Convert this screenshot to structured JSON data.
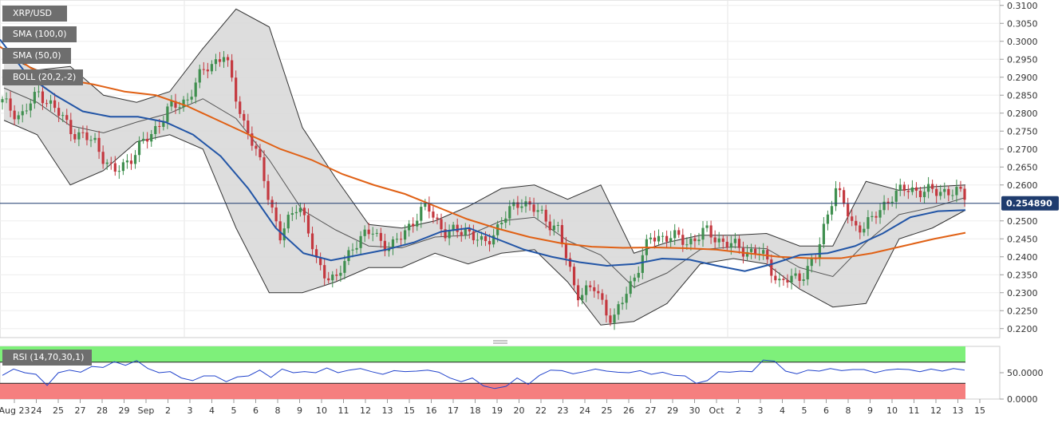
{
  "chart_data": {
    "type": "candlestick",
    "title": "XRP/USD",
    "legend": [
      {
        "label": "XRP/USD",
        "color": "#6e6e6e"
      },
      {
        "label": "SMA (100,0)",
        "color": "#e06014"
      },
      {
        "label": "SMA (50,0)",
        "color": "#2255a6"
      },
      {
        "label": "BOLL (20,2,-2)",
        "color": "#444444"
      }
    ],
    "current_price": "0.254890",
    "current_price_value": 0.25489,
    "y_ticks": [
      "0.3100",
      "0.3050",
      "0.3000",
      "0.2950",
      "0.2900",
      "0.2850",
      "0.2800",
      "0.2750",
      "0.2700",
      "0.2650",
      "0.2600",
      "0.2500",
      "0.2450",
      "0.2400",
      "0.2350",
      "0.2300",
      "0.2250",
      "0.2200"
    ],
    "ylim": [
      0.2175,
      0.3115
    ],
    "x_ticks": [
      "Aug 23",
      "24",
      "25",
      "27",
      "28",
      "29",
      "Sep",
      "2",
      "3",
      "4",
      "5",
      "6",
      "8",
      "9",
      "10",
      "11",
      "12",
      "13",
      "15",
      "16",
      "17",
      "18",
      "19",
      "20",
      "22",
      "23",
      "24",
      "25",
      "26",
      "27",
      "29",
      "30",
      "Oct",
      "2",
      "3",
      "4",
      "5",
      "6",
      "8",
      "9",
      "10",
      "11",
      "12",
      "13",
      "15"
    ],
    "close_path": [
      0.283,
      0.279,
      0.286,
      0.28,
      0.274,
      0.272,
      0.263,
      0.268,
      0.274,
      0.281,
      0.284,
      0.293,
      0.296,
      0.278,
      0.265,
      0.245,
      0.256,
      0.238,
      0.233,
      0.244,
      0.247,
      0.242,
      0.249,
      0.254,
      0.246,
      0.248,
      0.243,
      0.25,
      0.256,
      0.252,
      0.248,
      0.23,
      0.231,
      0.222,
      0.233,
      0.245,
      0.246,
      0.244,
      0.247,
      0.244,
      0.242,
      0.241,
      0.233,
      0.234,
      0.24,
      0.26,
      0.248,
      0.25,
      0.257,
      0.259,
      0.258,
      0.2585,
      0.257
    ],
    "sma100": [
      0.2985,
      0.2925,
      0.2895,
      0.288,
      0.286,
      0.285,
      0.282,
      0.278,
      0.274,
      0.27,
      0.267,
      0.263,
      0.26,
      0.2575,
      0.254,
      0.2505,
      0.2478,
      0.2455,
      0.2438,
      0.2428,
      0.2425,
      0.2426,
      0.2424,
      0.242,
      0.241,
      0.24,
      0.2396,
      0.2396,
      0.241,
      0.243,
      0.245,
      0.2467
    ],
    "sma50": [
      0.3005,
      0.2905,
      0.285,
      0.2805,
      0.279,
      0.279,
      0.2775,
      0.274,
      0.268,
      0.259,
      0.248,
      0.241,
      0.239,
      0.2405,
      0.242,
      0.244,
      0.247,
      0.248,
      0.245,
      0.242,
      0.24,
      0.2385,
      0.2375,
      0.238,
      0.2395,
      0.2392,
      0.2375,
      0.236,
      0.238,
      0.2405,
      0.241,
      0.243,
      0.2465,
      0.251,
      0.2527,
      0.253
    ],
    "boll_upper": [
      0.296,
      0.292,
      0.293,
      0.285,
      0.283,
      0.286,
      0.298,
      0.309,
      0.304,
      0.276,
      0.262,
      0.249,
      0.248,
      0.25,
      0.254,
      0.259,
      0.26,
      0.256,
      0.26,
      0.241,
      0.244,
      0.246,
      0.246,
      0.2465,
      0.243,
      0.243,
      0.261,
      0.2585,
      0.2595,
      0.26
    ],
    "boll_lower": [
      0.278,
      0.274,
      0.26,
      0.264,
      0.272,
      0.274,
      0.27,
      0.248,
      0.23,
      0.23,
      0.233,
      0.237,
      0.237,
      0.241,
      0.238,
      0.241,
      0.242,
      0.233,
      0.221,
      0.222,
      0.227,
      0.238,
      0.2395,
      0.238,
      0.231,
      0.226,
      0.227,
      0.245,
      0.248,
      0.253
    ],
    "rsi": {
      "label": "RSI (14,70,30,1)",
      "levels": [
        70,
        30
      ],
      "y_ticks": [
        "50.0000",
        "0.0000"
      ],
      "ylim": [
        0,
        100
      ],
      "values": [
        45,
        57,
        50,
        47,
        26,
        50,
        55,
        51,
        62,
        60,
        71,
        64,
        73,
        58,
        50,
        52,
        40,
        35,
        44,
        44,
        33,
        42,
        44,
        55,
        41,
        57,
        50,
        52,
        50,
        59,
        50,
        55,
        58,
        52,
        47,
        54,
        52,
        53,
        55,
        51,
        40,
        33,
        40,
        25,
        20,
        24,
        40,
        28,
        45,
        55,
        54,
        48,
        52,
        57,
        53,
        51,
        50,
        54,
        47,
        51,
        45,
        44,
        30,
        35,
        52,
        51,
        53,
        52,
        74,
        72,
        53,
        48,
        55,
        53,
        58,
        54,
        56,
        56,
        50,
        55,
        57,
        56,
        52,
        57,
        53,
        58,
        55
      ]
    }
  }
}
